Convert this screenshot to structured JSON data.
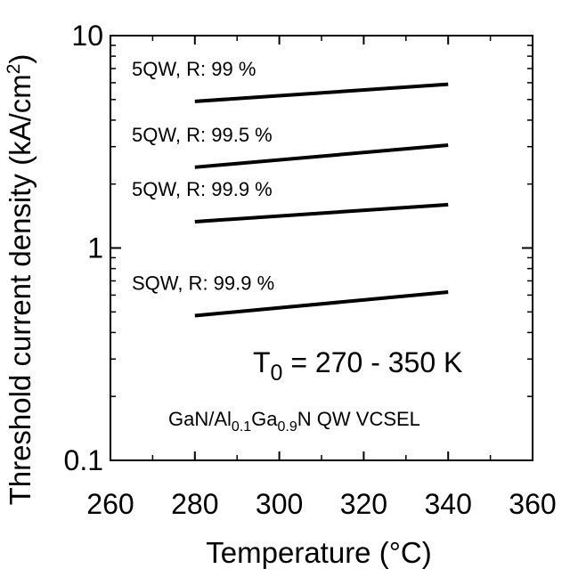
{
  "chart_data": {
    "type": "line",
    "title": "",
    "xlabel": "Temperature (°C)",
    "ylabel": "Threshold current density (kA/cm²)",
    "ylabel_parts": {
      "main": "Threshold current density (kA/cm",
      "sup": "2",
      "end": ")"
    },
    "xlim": [
      260,
      360
    ],
    "ylim": [
      0.1,
      10
    ],
    "yscale": "log",
    "x_ticks": [
      260,
      280,
      300,
      320,
      340,
      360
    ],
    "x_tick_labels": [
      "260",
      "280",
      "300",
      "320",
      "340",
      "360"
    ],
    "y_ticks": [
      0.1,
      1,
      10
    ],
    "y_tick_labels": [
      "0.1",
      "1",
      "10"
    ],
    "grid": false,
    "series": [
      {
        "name": "5QW, R: 99 %",
        "x": [
          280,
          340
        ],
        "y": [
          4.9,
          5.9
        ]
      },
      {
        "name": "5QW, R: 99.5 %",
        "x": [
          280,
          340
        ],
        "y": [
          2.4,
          3.05
        ]
      },
      {
        "name": "5QW, R: 99.9 %",
        "x": [
          280,
          340
        ],
        "y": [
          1.33,
          1.6
        ]
      },
      {
        "name": "SQW, R: 99.9 %",
        "x": [
          280,
          340
        ],
        "y": [
          0.48,
          0.62
        ]
      }
    ],
    "annotations": {
      "t0": {
        "prefix": "T",
        "sub": "0",
        "rest": " = 270 - 350 K"
      },
      "device": {
        "p1": "GaN/Al",
        "s1": "0.1",
        "p2": "Ga",
        "s2": "0.9",
        "p3": "N QW VCSEL"
      }
    }
  }
}
